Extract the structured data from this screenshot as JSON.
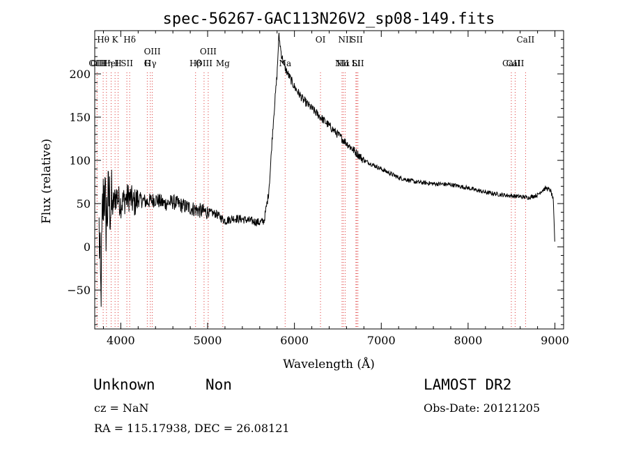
{
  "chart_data": {
    "type": "line",
    "title": "spec-56267-GAC113N26V2_sp08-149.fits",
    "xlabel": "Wavelength (Å)",
    "ylabel": "Flux (relative)",
    "xlim": [
      3700,
      9100
    ],
    "ylim": [
      -95,
      250
    ],
    "xticks": [
      4000,
      5000,
      6000,
      7000,
      8000,
      9000
    ],
    "yticks": [
      -50,
      0,
      50,
      100,
      150,
      200
    ],
    "grid": false,
    "series": [
      {
        "x": [
          3750,
          3770,
          3790,
          3810,
          3830,
          3860,
          3900,
          3950,
          4000,
          4050,
          4100,
          4150,
          4200,
          4300,
          4400,
          4500,
          4600,
          4700,
          4800,
          4900,
          5000,
          5100,
          5200,
          5300,
          5400,
          5500,
          5600,
          5650,
          5700,
          5720,
          5740,
          5760,
          5780,
          5800,
          5820,
          5850,
          5870,
          5900,
          5950,
          6000,
          6100,
          6200,
          6300,
          6400,
          6500,
          6600,
          6700,
          6800,
          6900,
          7000,
          7200,
          7400,
          7600,
          7800,
          8000,
          8200,
          8400,
          8600,
          8700,
          8800,
          8850,
          8900,
          8950,
          8980,
          8990,
          9000
        ],
        "y": [
          20,
          -60,
          40,
          70,
          30,
          55,
          45,
          60,
          50,
          55,
          58,
          50,
          55,
          52,
          55,
          50,
          52,
          48,
          45,
          42,
          40,
          38,
          30,
          33,
          32,
          30,
          28,
          30,
          60,
          85,
          120,
          150,
          175,
          200,
          245,
          222,
          215,
          205,
          195,
          185,
          170,
          160,
          150,
          140,
          130,
          120,
          110,
          100,
          95,
          90,
          80,
          75,
          73,
          72,
          68,
          63,
          60,
          58,
          57,
          60,
          65,
          68,
          65,
          55,
          30,
          0
        ]
      }
    ],
    "line_markers": [
      {
        "label": "Hθ",
        "x": 3797,
        "row": 0
      },
      {
        "label": "K",
        "x": 3934,
        "row": 0
      },
      {
        "label": "Hδ",
        "x": 4102,
        "row": 0
      },
      {
        "label": "OIII",
        "x": 4363,
        "row": 1
      },
      {
        "label": "Hγ",
        "x": 4340,
        "row": 2
      },
      {
        "label": "G",
        "x": 4305,
        "row": 3
      },
      {
        "label": "OII",
        "x": 3727,
        "row": 2
      },
      {
        "label": "HeI",
        "x": 3889,
        "row": 2
      },
      {
        "label": "SII",
        "x": 4070,
        "row": 2
      },
      {
        "label": "OIII",
        "x": 3727,
        "row": 3
      },
      {
        "label": "Hη",
        "x": 3835,
        "row": 3
      },
      {
        "label": "H",
        "x": 3969,
        "row": 3
      },
      {
        "label": "OIII",
        "x": 5007,
        "row": 1
      },
      {
        "label": "OIII",
        "x": 4959,
        "row": 2
      },
      {
        "label": "Hβ",
        "x": 4861,
        "row": 3
      },
      {
        "label": "Mg",
        "x": 5175,
        "row": 3
      },
      {
        "label": "Na",
        "x": 5893,
        "row": 2
      },
      {
        "label": "OI",
        "x": 6300,
        "row": 0
      },
      {
        "label": "NII",
        "x": 6584,
        "row": 0
      },
      {
        "label": "SII",
        "x": 6717,
        "row": 0
      },
      {
        "label": "Hα",
        "x": 6563,
        "row": 2
      },
      {
        "label": "SII",
        "x": 6731,
        "row": 2
      },
      {
        "label": "NII",
        "x": 6548,
        "row": 3
      },
      {
        "label": "Li",
        "x": 6708,
        "row": 3
      },
      {
        "label": "CaII",
        "x": 8662,
        "row": 0
      },
      {
        "label": "CaII",
        "x": 8542,
        "row": 2
      },
      {
        "label": "CaII",
        "x": 8498,
        "row": 3
      }
    ]
  },
  "info": {
    "class": "Unknown",
    "subclass": "Non",
    "cz": "cz = NaN",
    "radec": "RA = 115.17938, DEC =  26.08121",
    "survey": "LAMOST DR2",
    "obsdate": "Obs-Date: 20121205"
  }
}
